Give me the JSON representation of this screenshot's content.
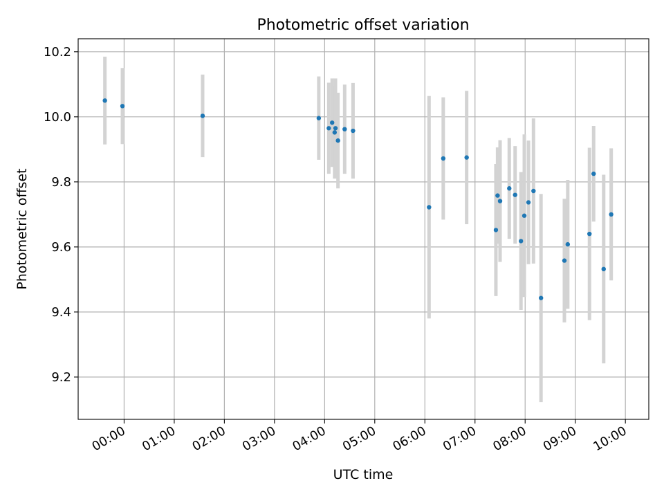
{
  "chart_data": {
    "type": "scatter",
    "title": "Photometric offset variation",
    "xlabel": "UTC time",
    "ylabel": "Photometric offset",
    "xlim": [
      "23:05",
      "10:28"
    ],
    "ylim": [
      9.07,
      10.24
    ],
    "x_ticks": [
      "00:00",
      "01:00",
      "02:00",
      "03:00",
      "04:00",
      "05:00",
      "06:00",
      "07:00",
      "08:00",
      "09:00",
      "10:00"
    ],
    "y_ticks": [
      "9.2",
      "9.4",
      "9.6",
      "9.8",
      "10.0",
      "10.2"
    ],
    "grid": true,
    "colors": {
      "points": "#1f77b4",
      "errorbars": "#d3d3d3",
      "grid": "#b0b0b0"
    },
    "series": [
      {
        "points": [
          {
            "x": "23:37",
            "y": 10.05,
            "err": 0.135
          },
          {
            "x": "23:58",
            "y": 10.033,
            "err": 0.117
          },
          {
            "x": "01:34",
            "y": 10.003,
            "err": 0.127
          },
          {
            "x": "03:53",
            "y": 9.996,
            "err": 0.128
          },
          {
            "x": "04:05",
            "y": 9.965,
            "err": 0.14
          },
          {
            "x": "04:09",
            "y": 9.982,
            "err": 0.136
          },
          {
            "x": "04:12",
            "y": 9.952,
            "err": 0.142
          },
          {
            "x": "04:13",
            "y": 9.965,
            "err": 0.153
          },
          {
            "x": "04:16",
            "y": 9.927,
            "err": 0.147
          },
          {
            "x": "04:24",
            "y": 9.962,
            "err": 0.137
          },
          {
            "x": "04:34",
            "y": 9.957,
            "err": 0.147
          },
          {
            "x": "06:05",
            "y": 9.722,
            "err": 0.342
          },
          {
            "x": "06:22",
            "y": 9.872,
            "err": 0.188
          },
          {
            "x": "06:50",
            "y": 9.875,
            "err": 0.205
          },
          {
            "x": "07:25",
            "y": 9.652,
            "err": 0.203
          },
          {
            "x": "07:27",
            "y": 9.758,
            "err": 0.148
          },
          {
            "x": "07:30",
            "y": 9.741,
            "err": 0.187
          },
          {
            "x": "07:41",
            "y": 9.78,
            "err": 0.155
          },
          {
            "x": "07:48",
            "y": 9.76,
            "err": 0.15
          },
          {
            "x": "07:55",
            "y": 9.618,
            "err": 0.212
          },
          {
            "x": "07:59",
            "y": 9.696,
            "err": 0.25
          },
          {
            "x": "08:04",
            "y": 9.737,
            "err": 0.19
          },
          {
            "x": "08:10",
            "y": 9.772,
            "err": 0.223
          },
          {
            "x": "08:19",
            "y": 9.443,
            "err": 0.32
          },
          {
            "x": "08:47",
            "y": 9.558,
            "err": 0.19
          },
          {
            "x": "08:51",
            "y": 9.608,
            "err": 0.198
          },
          {
            "x": "09:17",
            "y": 9.64,
            "err": 0.265
          },
          {
            "x": "09:22",
            "y": 9.825,
            "err": 0.147
          },
          {
            "x": "09:34",
            "y": 9.532,
            "err": 0.29
          },
          {
            "x": "09:43",
            "y": 9.7,
            "err": 0.203
          }
        ]
      }
    ]
  }
}
